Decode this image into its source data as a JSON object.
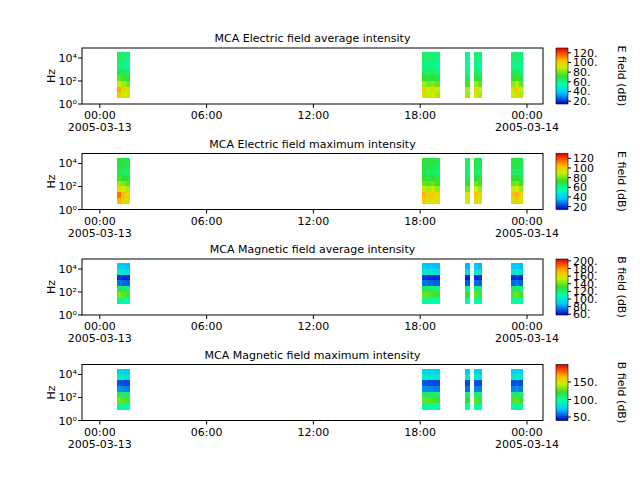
{
  "chart_data": [
    {
      "type": "heatmap",
      "title": "MCA  Electric field average intensity",
      "y_label": "Hz",
      "log": "y",
      "xlim": [
        "2005-03-12T23:00",
        "2005-03-14T00:54"
      ],
      "xticks": [
        {
          "value": "2005-03-13T00:00",
          "label": "00:00\n2005-03-13"
        },
        {
          "value": "2005-03-13T06:00",
          "label": "06:00"
        },
        {
          "value": "2005-03-13T12:00",
          "label": "12:00"
        },
        {
          "value": "2005-03-13T18:00",
          "label": "18:00"
        },
        {
          "value": "2005-03-14T00:00",
          "label": "00:00\n2005-03-14"
        }
      ],
      "ylim": [
        1,
        74000
      ],
      "yticks": [
        {
          "value": 1,
          "label": "10⁰"
        },
        {
          "value": 100,
          "label": "10²"
        },
        {
          "value": 10000,
          "label": "10⁴"
        }
      ],
      "z_label": "E field (dB)",
      "zlim": [
        14,
        130
      ],
      "zticks": [
        {
          "value": 20,
          "label": "20."
        },
        {
          "value": 40,
          "label": "40."
        },
        {
          "value": 60,
          "label": "60."
        },
        {
          "value": 80,
          "label": "80."
        },
        {
          "value": 100,
          "label": "100."
        },
        {
          "value": 120,
          "label": "120."
        }
      ],
      "bins": [
        3.3,
        10,
        31,
        100,
        316,
        1000,
        3162,
        10000,
        33000
      ],
      "columns": [
        {
          "start": "2005-03-13T00:57",
          "end": "2005-03-13T01:12",
          "values": [
            100,
            108,
            92,
            78,
            68,
            62,
            64,
            66
          ]
        },
        {
          "start": "2005-03-13T01:12",
          "end": "2005-03-13T01:27",
          "values": [
            92,
            98,
            85,
            74,
            66,
            60,
            62,
            64
          ]
        },
        {
          "start": "2005-03-13T01:27",
          "end": "2005-03-13T01:41",
          "values": [
            88,
            92,
            80,
            70,
            64,
            58,
            60,
            62
          ]
        },
        {
          "start": "2005-03-13T18:06",
          "end": "2005-03-13T18:21",
          "values": [
            95,
            100,
            85,
            72,
            66,
            62,
            64,
            66
          ]
        },
        {
          "start": "2005-03-13T18:21",
          "end": "2005-03-13T18:36",
          "values": [
            88,
            92,
            80,
            70,
            64,
            60,
            62,
            64
          ]
        },
        {
          "start": "2005-03-13T18:36",
          "end": "2005-03-13T18:51",
          "values": [
            90,
            96,
            82,
            72,
            66,
            60,
            62,
            64
          ]
        },
        {
          "start": "2005-03-13T18:51",
          "end": "2005-03-13T19:06",
          "values": [
            86,
            90,
            78,
            68,
            62,
            58,
            60,
            62
          ]
        },
        {
          "start": "2005-03-13T20:30",
          "end": "2005-03-13T20:48",
          "values": [
            84,
            86,
            74,
            66,
            60,
            56,
            58,
            60
          ]
        },
        {
          "start": "2005-03-13T21:00",
          "end": "2005-03-13T21:15",
          "values": [
            92,
            98,
            84,
            72,
            66,
            60,
            62,
            64
          ]
        },
        {
          "start": "2005-03-13T21:15",
          "end": "2005-03-13T21:30",
          "values": [
            86,
            90,
            78,
            68,
            62,
            58,
            60,
            62
          ]
        },
        {
          "start": "2005-03-13T23:06",
          "end": "2005-03-13T23:20",
          "values": [
            90,
            96,
            82,
            72,
            66,
            60,
            62,
            64
          ]
        },
        {
          "start": "2005-03-13T23:20",
          "end": "2005-03-13T23:34",
          "values": [
            94,
            100,
            86,
            74,
            66,
            60,
            62,
            64
          ]
        },
        {
          "start": "2005-03-13T23:34",
          "end": "2005-03-13T23:48",
          "values": [
            86,
            90,
            78,
            68,
            62,
            58,
            60,
            62
          ]
        }
      ]
    },
    {
      "type": "heatmap",
      "title": "MCA  Electric field maximum intensity",
      "y_label": "Hz",
      "log": "y",
      "xlim": [
        "2005-03-12T23:00",
        "2005-03-14T00:54"
      ],
      "xticks": [
        {
          "value": "2005-03-13T00:00",
          "label": "00:00\n2005-03-13"
        },
        {
          "value": "2005-03-13T06:00",
          "label": "06:00"
        },
        {
          "value": "2005-03-13T12:00",
          "label": "12:00"
        },
        {
          "value": "2005-03-13T18:00",
          "label": "18:00"
        },
        {
          "value": "2005-03-14T00:00",
          "label": "00:00\n2005-03-14"
        }
      ],
      "ylim": [
        1,
        74000
      ],
      "yticks": [
        {
          "value": 1,
          "label": "10⁰"
        },
        {
          "value": 100,
          "label": "10²"
        },
        {
          "value": 10000,
          "label": "10⁴"
        }
      ],
      "z_label": "E field (dB)",
      "zlim": [
        14,
        130
      ],
      "zticks": [
        20,
        40,
        60,
        80,
        100,
        120
      ],
      "bins": [
        3.3,
        10,
        31,
        100,
        316,
        1000,
        3162,
        10000,
        33000
      ],
      "columns": [
        {
          "start": "2005-03-13T00:57",
          "end": "2005-03-13T01:12",
          "values": [
            106,
            114,
            98,
            84,
            74,
            68,
            70,
            72
          ]
        },
        {
          "start": "2005-03-13T01:12",
          "end": "2005-03-13T01:27",
          "values": [
            98,
            104,
            91,
            80,
            72,
            66,
            68,
            70
          ]
        },
        {
          "start": "2005-03-13T01:27",
          "end": "2005-03-13T01:41",
          "values": [
            94,
            98,
            86,
            76,
            70,
            64,
            66,
            68
          ]
        },
        {
          "start": "2005-03-13T18:06",
          "end": "2005-03-13T18:21",
          "values": [
            101,
            106,
            91,
            78,
            72,
            68,
            70,
            72
          ]
        },
        {
          "start": "2005-03-13T18:21",
          "end": "2005-03-13T18:36",
          "values": [
            94,
            98,
            86,
            76,
            70,
            66,
            68,
            70
          ]
        },
        {
          "start": "2005-03-13T18:36",
          "end": "2005-03-13T18:51",
          "values": [
            96,
            102,
            88,
            78,
            72,
            66,
            68,
            70
          ]
        },
        {
          "start": "2005-03-13T18:51",
          "end": "2005-03-13T19:06",
          "values": [
            92,
            96,
            84,
            74,
            68,
            64,
            66,
            68
          ]
        },
        {
          "start": "2005-03-13T20:30",
          "end": "2005-03-13T20:48",
          "values": [
            90,
            92,
            80,
            72,
            66,
            62,
            64,
            66
          ]
        },
        {
          "start": "2005-03-13T21:00",
          "end": "2005-03-13T21:15",
          "values": [
            98,
            104,
            90,
            78,
            72,
            66,
            68,
            70
          ]
        },
        {
          "start": "2005-03-13T21:15",
          "end": "2005-03-13T21:30",
          "values": [
            92,
            96,
            84,
            74,
            68,
            64,
            66,
            68
          ]
        },
        {
          "start": "2005-03-13T23:06",
          "end": "2005-03-13T23:20",
          "values": [
            96,
            102,
            88,
            78,
            72,
            66,
            68,
            70
          ]
        },
        {
          "start": "2005-03-13T23:20",
          "end": "2005-03-13T23:34",
          "values": [
            100,
            106,
            92,
            80,
            72,
            66,
            68,
            70
          ]
        },
        {
          "start": "2005-03-13T23:34",
          "end": "2005-03-13T23:48",
          "values": [
            92,
            96,
            84,
            74,
            68,
            64,
            66,
            68
          ]
        }
      ]
    },
    {
      "type": "heatmap",
      "title": "MCA  Magnetic field average intensity",
      "y_label": "Hz",
      "log": "y",
      "xlim": [
        "2005-03-12T23:00",
        "2005-03-14T00:54"
      ],
      "xticks": [
        {
          "value": "2005-03-13T00:00",
          "label": "00:00\n2005-03-13"
        },
        {
          "value": "2005-03-13T06:00",
          "label": "06:00"
        },
        {
          "value": "2005-03-13T12:00",
          "label": "12:00"
        },
        {
          "value": "2005-03-13T18:00",
          "label": "18:00"
        },
        {
          "value": "2005-03-14T00:00",
          "label": "00:00\n2005-03-14"
        }
      ],
      "ylim": [
        1,
        74000
      ],
      "yticks": [
        {
          "value": 1,
          "label": "10⁰"
        },
        {
          "value": 100,
          "label": "10²"
        },
        {
          "value": 10000,
          "label": "10⁴"
        }
      ],
      "z_label": "B field (dB)",
      "zlim": [
        58,
        205
      ],
      "zticks": [
        {
          "value": 60,
          "label": "60."
        },
        {
          "value": 80,
          "label": "80."
        },
        {
          "value": 100,
          "label": "100."
        },
        {
          "value": 120,
          "label": "120."
        },
        {
          "value": 140,
          "label": "140."
        },
        {
          "value": 160,
          "label": "160."
        },
        {
          "value": 180,
          "label": "180."
        },
        {
          "value": 200,
          "label": "200."
        }
      ],
      "bins": [
        9,
        31,
        100,
        316,
        1000,
        3162,
        10000,
        33000
      ],
      "columns": [
        {
          "start": "2005-03-13T00:57",
          "end": "2005-03-13T01:12",
          "values": [
            115,
            142,
            125,
            76,
            66,
            102,
            90
          ]
        },
        {
          "start": "2005-03-13T01:12",
          "end": "2005-03-13T01:27",
          "values": [
            112,
            138,
            122,
            74,
            64,
            100,
            88
          ]
        },
        {
          "start": "2005-03-13T01:27",
          "end": "2005-03-13T01:41",
          "values": [
            110,
            135,
            120,
            72,
            64,
            98,
            86
          ]
        },
        {
          "start": "2005-03-13T18:06",
          "end": "2005-03-13T18:21",
          "values": [
            114,
            140,
            124,
            75,
            66,
            101,
            89
          ]
        },
        {
          "start": "2005-03-13T18:21",
          "end": "2005-03-13T18:36",
          "values": [
            112,
            138,
            122,
            74,
            65,
            100,
            88
          ]
        },
        {
          "start": "2005-03-13T18:36",
          "end": "2005-03-13T18:51",
          "values": [
            111,
            136,
            121,
            73,
            64,
            99,
            87
          ]
        },
        {
          "start": "2005-03-13T18:51",
          "end": "2005-03-13T19:06",
          "values": [
            110,
            134,
            119,
            72,
            64,
            98,
            86
          ]
        },
        {
          "start": "2005-03-13T20:30",
          "end": "2005-03-13T20:48",
          "values": [
            108,
            132,
            118,
            71,
            63,
            97,
            85
          ]
        },
        {
          "start": "2005-03-13T21:00",
          "end": "2005-03-13T21:15",
          "values": [
            112,
            138,
            122,
            74,
            65,
            100,
            88
          ]
        },
        {
          "start": "2005-03-13T21:15",
          "end": "2005-03-13T21:30",
          "values": [
            110,
            135,
            120,
            72,
            64,
            98,
            86
          ]
        },
        {
          "start": "2005-03-13T23:06",
          "end": "2005-03-13T23:20",
          "values": [
            111,
            137,
            121,
            73,
            65,
            99,
            87
          ]
        },
        {
          "start": "2005-03-13T23:20",
          "end": "2005-03-13T23:34",
          "values": [
            113,
            139,
            123,
            75,
            66,
            101,
            89
          ]
        },
        {
          "start": "2005-03-13T23:34",
          "end": "2005-03-13T23:48",
          "values": [
            110,
            134,
            119,
            72,
            64,
            98,
            86
          ]
        }
      ]
    },
    {
      "type": "heatmap",
      "title": "MCA  Magnetic field maximum intensity",
      "y_label": "Hz",
      "log": "y",
      "xlim": [
        "2005-03-12T23:00",
        "2005-03-14T00:54"
      ],
      "xticks": [
        {
          "value": "2005-03-13T00:00",
          "label": "00:00\n2005-03-13"
        },
        {
          "value": "2005-03-13T06:00",
          "label": "06:00"
        },
        {
          "value": "2005-03-13T12:00",
          "label": "12:00"
        },
        {
          "value": "2005-03-13T18:00",
          "label": "18:00"
        },
        {
          "value": "2005-03-14T00:00",
          "label": "00:00\n2005-03-14"
        }
      ],
      "ylim": [
        1,
        74000
      ],
      "yticks": [
        {
          "value": 1,
          "label": "10⁰"
        },
        {
          "value": 100,
          "label": "10²"
        },
        {
          "value": 10000,
          "label": "10⁴"
        }
      ],
      "z_label": "B field (dB)",
      "zlim": [
        40,
        200
      ],
      "zticks": [
        {
          "value": 50,
          "label": "50."
        },
        {
          "value": 100,
          "label": "100."
        },
        {
          "value": 150,
          "label": "150."
        }
      ],
      "bins": [
        9,
        31,
        100,
        316,
        1000,
        3162,
        10000,
        33000
      ],
      "columns": [
        {
          "start": "2005-03-13T00:57",
          "end": "2005-03-13T01:12",
          "values": [
            103,
            130,
            113,
            64,
            54,
            90,
            78
          ]
        },
        {
          "start": "2005-03-13T01:12",
          "end": "2005-03-13T01:27",
          "values": [
            100,
            126,
            110,
            62,
            52,
            88,
            76
          ]
        },
        {
          "start": "2005-03-13T01:27",
          "end": "2005-03-13T01:41",
          "values": [
            98,
            123,
            108,
            60,
            52,
            86,
            74
          ]
        },
        {
          "start": "2005-03-13T18:06",
          "end": "2005-03-13T18:21",
          "values": [
            102,
            128,
            112,
            63,
            54,
            89,
            77
          ]
        },
        {
          "start": "2005-03-13T18:21",
          "end": "2005-03-13T18:36",
          "values": [
            100,
            126,
            110,
            62,
            53,
            88,
            76
          ]
        },
        {
          "start": "2005-03-13T18:36",
          "end": "2005-03-13T18:51",
          "values": [
            99,
            124,
            109,
            61,
            52,
            87,
            75
          ]
        },
        {
          "start": "2005-03-13T18:51",
          "end": "2005-03-13T19:06",
          "values": [
            98,
            122,
            107,
            60,
            52,
            86,
            74
          ]
        },
        {
          "start": "2005-03-13T20:30",
          "end": "2005-03-13T20:48",
          "values": [
            96,
            120,
            106,
            59,
            51,
            85,
            73
          ]
        },
        {
          "start": "2005-03-13T21:00",
          "end": "2005-03-13T21:15",
          "values": [
            100,
            126,
            110,
            62,
            53,
            88,
            76
          ]
        },
        {
          "start": "2005-03-13T21:15",
          "end": "2005-03-13T21:30",
          "values": [
            98,
            123,
            108,
            60,
            52,
            86,
            74
          ]
        },
        {
          "start": "2005-03-13T23:06",
          "end": "2005-03-13T23:20",
          "values": [
            99,
            125,
            109,
            61,
            53,
            87,
            75
          ]
        },
        {
          "start": "2005-03-13T23:20",
          "end": "2005-03-13T23:34",
          "values": [
            101,
            127,
            111,
            63,
            54,
            89,
            77
          ]
        },
        {
          "start": "2005-03-13T23:34",
          "end": "2005-03-13T23:48",
          "values": [
            98,
            122,
            107,
            60,
            52,
            86,
            74
          ]
        }
      ]
    }
  ]
}
